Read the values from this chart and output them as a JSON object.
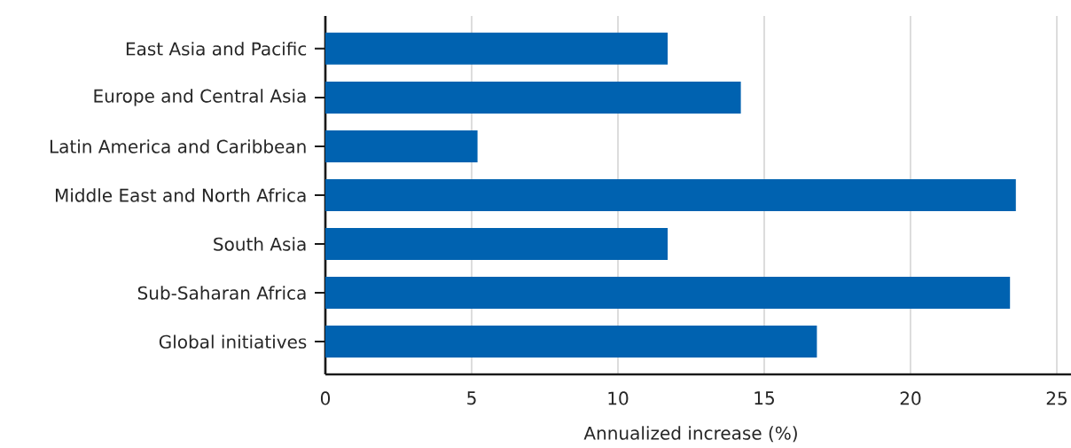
{
  "chart_data": {
    "type": "bar",
    "orientation": "horizontal",
    "categories": [
      "East Asia and Pacific",
      "Europe and Central Asia",
      "Latin America and Caribbean",
      "Middle East and North Africa",
      "South Asia",
      "Sub-Saharan Africa",
      "Global initiatives"
    ],
    "values": [
      11.7,
      14.2,
      5.2,
      23.6,
      11.7,
      23.4,
      16.8
    ],
    "color": "#0062b0",
    "xlabel": "Annualized increase (%)",
    "xlim": [
      0,
      25
    ],
    "xticks": [
      0,
      5,
      10,
      15,
      20,
      25
    ],
    "grid": "x"
  }
}
